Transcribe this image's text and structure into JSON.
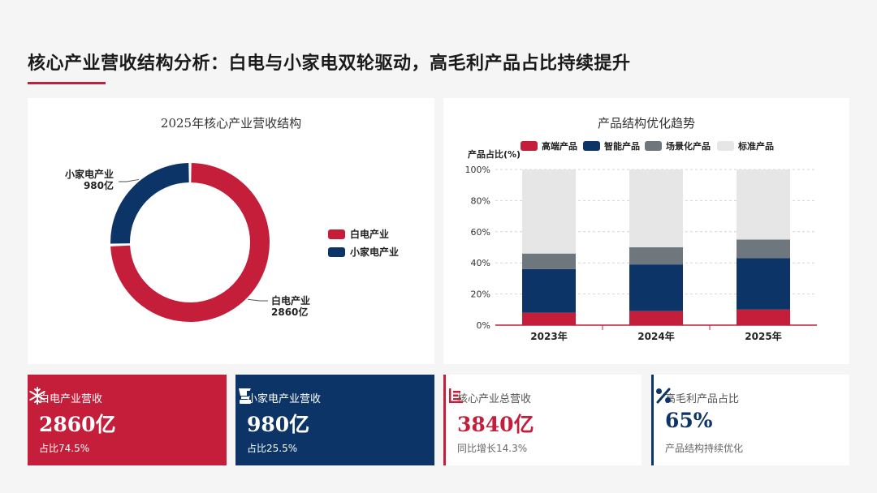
{
  "header": {
    "title": "核心产业营收结构分析：白电与小家电双轮驱动，高毛利产品占比持续提升"
  },
  "colors": {
    "red": "#c41e3a",
    "navy": "#0c3466",
    "gray": "#6e767e",
    "lightgray": "#e6e6e6"
  },
  "chart_data": [
    {
      "type": "pie",
      "title": "2025年核心产业营收结构",
      "unit": "亿",
      "slices": [
        {
          "name": "白电产业",
          "value": 2860,
          "label_name": "白电产业",
          "label_value": "2860亿"
        },
        {
          "name": "小家电产业",
          "value": 980,
          "label_name": "小家电产业",
          "label_value": "980亿"
        }
      ],
      "legend": [
        "白电产业",
        "小家电产业"
      ],
      "legend_position": "right"
    },
    {
      "type": "bar",
      "stacked": true,
      "title": "产品结构优化趋势",
      "ylabel": "产品占比(%)",
      "ylim": [
        0,
        100
      ],
      "yticks": [
        "0%",
        "20%",
        "40%",
        "60%",
        "80%",
        "100%"
      ],
      "categories": [
        "2023年",
        "2024年",
        "2025年"
      ],
      "series": [
        {
          "name": "高端产品",
          "values": [
            8,
            9,
            10
          ]
        },
        {
          "name": "智能产品",
          "values": [
            28,
            30,
            33
          ]
        },
        {
          "name": "场景化产品",
          "values": [
            10,
            11,
            12
          ]
        },
        {
          "name": "标准产品",
          "values": [
            54,
            50,
            45
          ]
        }
      ],
      "legend_position": "top",
      "grid": true
    }
  ],
  "cards": [
    {
      "label": "白电产业营收",
      "value": "2860亿",
      "note": "占比74.5%",
      "icon": "snowflake-icon"
    },
    {
      "label": "小家电产业营收",
      "value": "980亿",
      "note": "占比25.5%",
      "icon": "blender-icon"
    },
    {
      "label": "核心产业总营收",
      "value": "3840亿",
      "note": "同比增长14.3%",
      "icon": "bar-chart-icon"
    },
    {
      "label": "高毛利产品占比",
      "value": "65%",
      "note": "产品结构持续优化",
      "icon": "percent-icon"
    }
  ]
}
